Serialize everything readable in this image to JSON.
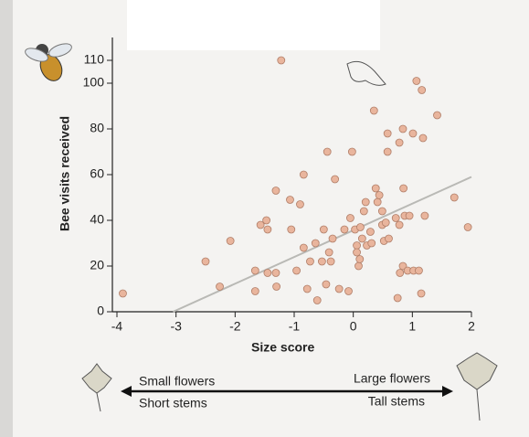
{
  "chart_data": {
    "type": "scatter",
    "x_label": "Size score",
    "y_label": "Bee visits received",
    "xlim": [
      -4,
      2
    ],
    "xticks": [
      -4,
      -3,
      -2,
      -1,
      0,
      1,
      2
    ],
    "ylim": [
      0,
      110
    ],
    "yticks": [
      0,
      20,
      40,
      60,
      80,
      100,
      110
    ],
    "color": "#e9b59d",
    "x": [
      -3.9,
      -2.5,
      -2.26,
      -2.08,
      -1.66,
      -1.66,
      -1.57,
      -1.47,
      -1.45,
      -1.45,
      -1.31,
      -1.3,
      -1.31,
      -1.22,
      -1.07,
      -1.05,
      -0.96,
      -0.9,
      -0.84,
      -0.84,
      -0.78,
      -0.73,
      -0.64,
      -0.61,
      -0.53,
      -0.5,
      -0.46,
      -0.44,
      -0.41,
      -0.38,
      -0.35,
      -0.31,
      -0.24,
      -0.15,
      -0.08,
      -0.05,
      -0.02,
      0.03,
      0.06,
      0.06,
      0.09,
      0.11,
      0.12,
      0.15,
      0.18,
      0.21,
      0.23,
      0.29,
      0.31,
      0.35,
      0.38,
      0.41,
      0.44,
      0.49,
      0.49,
      0.52,
      0.55,
      0.58,
      0.58,
      0.6,
      0.72,
      0.75,
      0.78,
      0.78,
      0.79,
      0.84,
      0.85,
      0.87,
      0.84,
      0.92,
      0.95,
      1.01,
      1.02,
      1.07,
      1.11,
      1.16,
      1.15,
      1.18,
      1.21,
      1.42,
      1.71,
      1.94
    ],
    "values": [
      8,
      22,
      11,
      31,
      18,
      9,
      38,
      40,
      36,
      17,
      17,
      11,
      53,
      110,
      49,
      36,
      18,
      47,
      28,
      60,
      10,
      22,
      30,
      5,
      22,
      36,
      12,
      70,
      26,
      22,
      32,
      58,
      10,
      36,
      9,
      41,
      70,
      36,
      29,
      26,
      20,
      23,
      37,
      32,
      44,
      48,
      29,
      35,
      30,
      88,
      54,
      48,
      51,
      38,
      44,
      31,
      39,
      78,
      70,
      32,
      41,
      6,
      38,
      74,
      17,
      80,
      54,
      42,
      20,
      18,
      42,
      78,
      18,
      101,
      18,
      97,
      8,
      76,
      42,
      86,
      50,
      37
    ],
    "trend_line": {
      "x": [
        -3.05,
        2
      ],
      "y": [
        0,
        59
      ]
    },
    "scale_left": [
      "Small flowers",
      "Short stems"
    ],
    "scale_right": [
      "Large flowers",
      "Tall stems"
    ]
  }
}
